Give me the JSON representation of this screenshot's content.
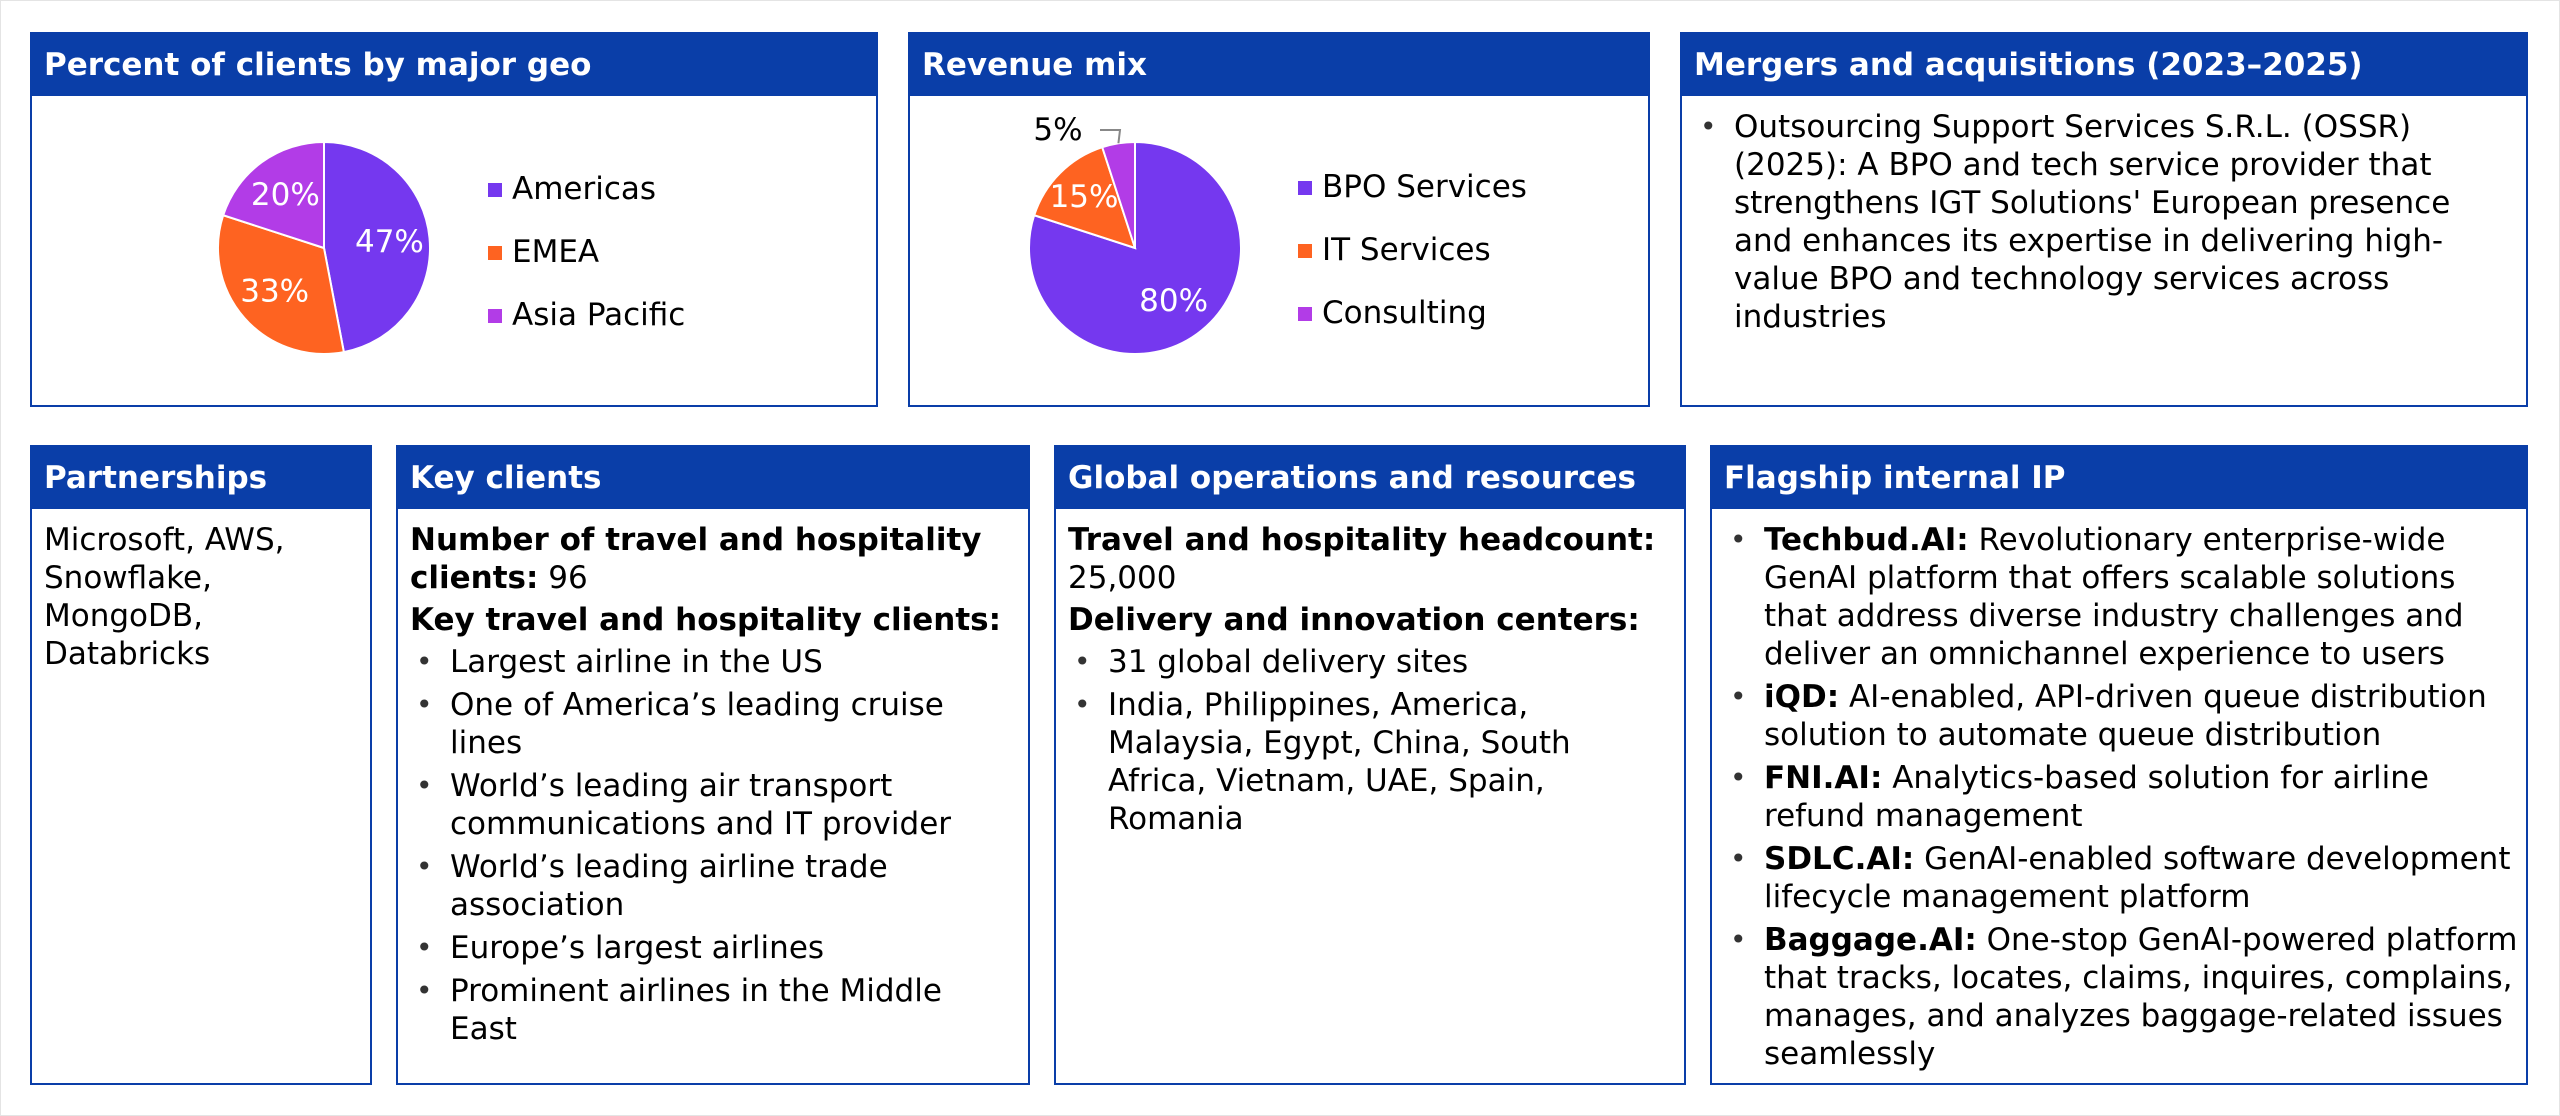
{
  "colors": {
    "header": "#0a3ea8",
    "purple": "#7538ef",
    "orange": "#fe6321",
    "magenta": "#b23ce7"
  },
  "geo": {
    "title": "Percent of clients by major geo",
    "chart_data": {
      "type": "pie",
      "categories": [
        "Americas",
        "EMEA",
        "Asia Pacific"
      ],
      "values": [
        47,
        33,
        20
      ],
      "labels": [
        "47%",
        "33%",
        "20%"
      ],
      "colors": [
        "#7538ef",
        "#fe6321",
        "#b23ce7"
      ],
      "legend": "right"
    }
  },
  "revenue": {
    "title": "Revenue mix",
    "chart_data": {
      "type": "pie",
      "categories": [
        "BPO Services",
        "IT Services",
        "Consulting"
      ],
      "values": [
        80,
        15,
        5
      ],
      "labels": [
        "80%",
        "15%",
        "5%"
      ],
      "colors": [
        "#7538ef",
        "#fe6321",
        "#b23ce7"
      ],
      "legend": "right"
    }
  },
  "mna": {
    "title": "Mergers and acquisitions (2023–2025)",
    "items": [
      "Outsourcing Support Services S.R.L. (OSSR) (2025): A BPO and tech service provider that strengthens IGT Solutions' European presence and enhances its expertise in delivering high-value BPO and technology services across industries"
    ]
  },
  "partnerships": {
    "title": "Partnerships",
    "text": "Microsoft, AWS, Snowflake, MongoDB, Databricks"
  },
  "clients": {
    "title": "Key clients",
    "count_label": "Number of travel and hospitality clients:",
    "count_value": " 96",
    "key_label": "Key travel and hospitality clients:",
    "items": [
      "Largest airline in the US",
      "One of America’s leading cruise lines",
      "World’s leading air transport communications and IT provider",
      "World’s leading airline trade association",
      "Europe’s largest airlines",
      "Prominent airlines in the Middle East"
    ]
  },
  "operations": {
    "title": "Global operations and resources",
    "headcount_label": "Travel and hospitality headcount:",
    "headcount_value": "25,000",
    "centers_label": "Delivery and innovation centers:",
    "items": [
      "31 global delivery sites",
      "India, Philippines, America, Malaysia, Egypt, China, South Africa, Vietnam, UAE, Spain, Romania"
    ]
  },
  "ip": {
    "title": "Flagship internal IP",
    "items": [
      {
        "name": "Techbud.AI:",
        "desc": " Revolutionary enterprise-wide GenAI platform that offers scalable solutions that address diverse industry challenges and deliver an omnichannel experience to users"
      },
      {
        "name": "iQD:",
        "desc": " AI-enabled, API-driven queue distribution solution to automate queue distribution"
      },
      {
        "name": "FNI.AI:",
        "desc": " Analytics-based solution for airline refund management"
      },
      {
        "name": "SDLC.AI:",
        "desc": " GenAI-enabled software development lifecycle management platform"
      },
      {
        "name": "Baggage.AI:",
        "desc": " One-stop GenAI-powered platform that tracks, locates, claims, inquires, complains, manages, and analyzes baggage-related issues seamlessly"
      }
    ]
  }
}
